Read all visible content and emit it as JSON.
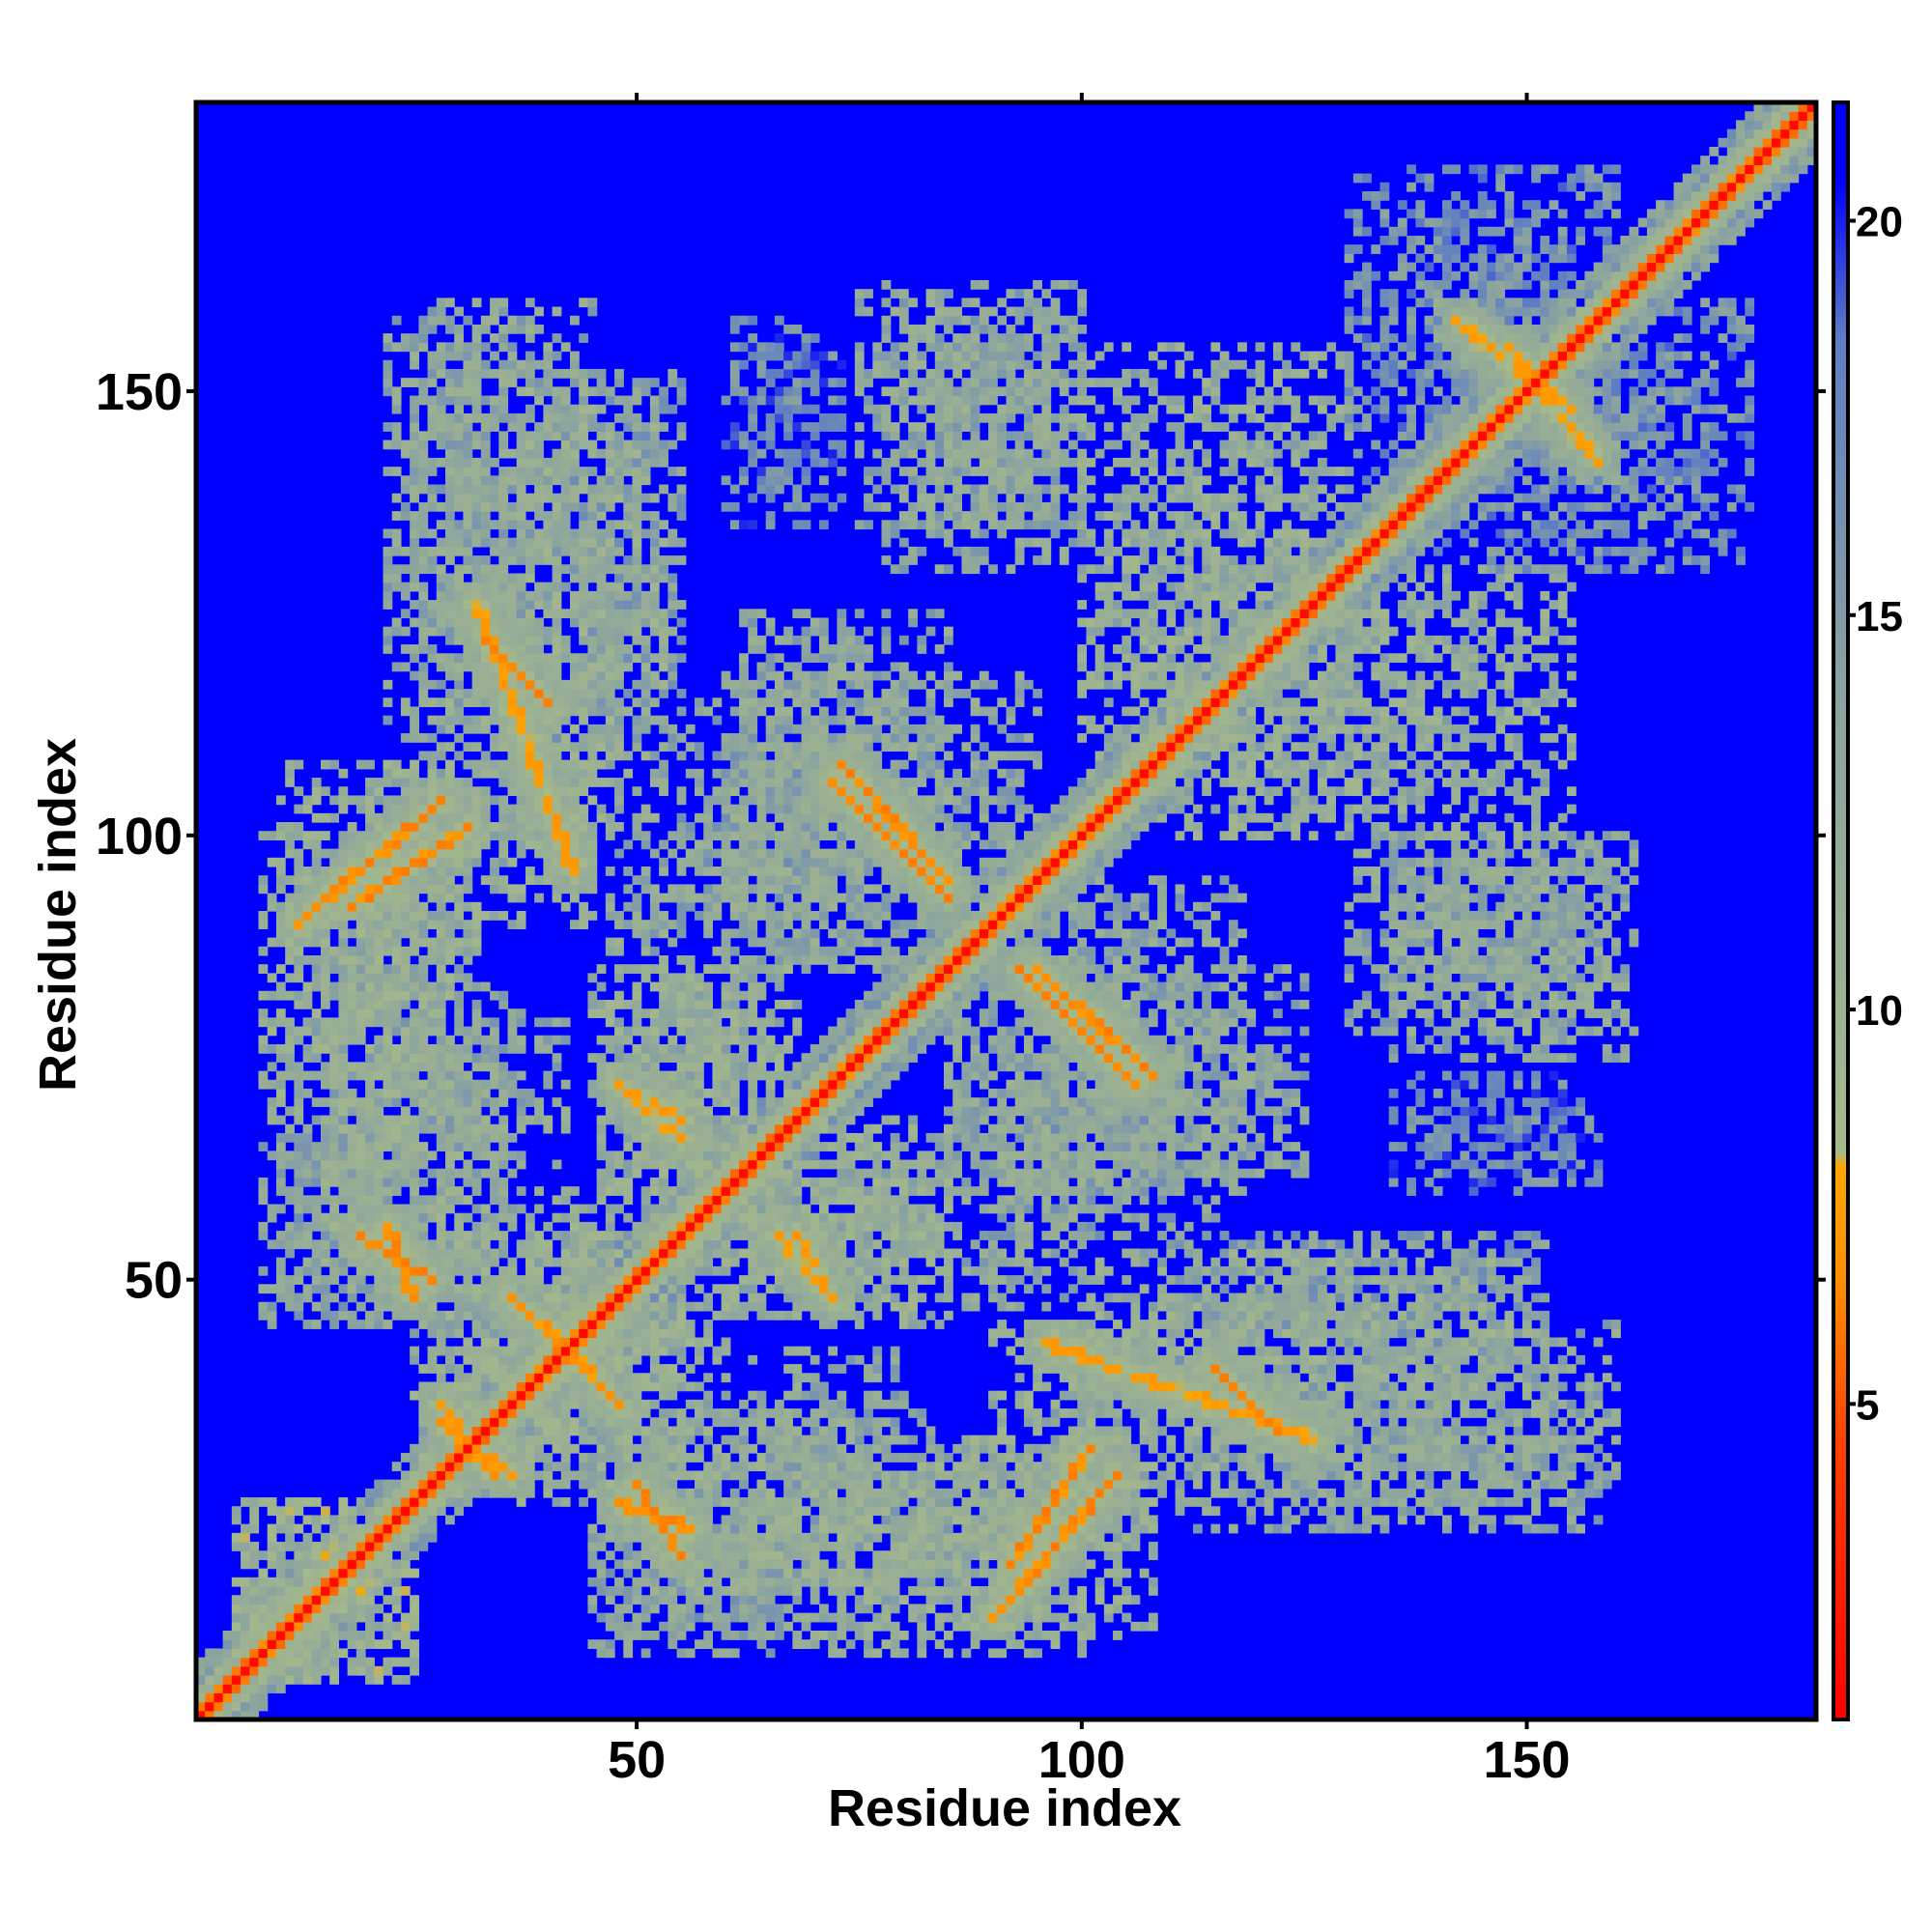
{
  "chart_data": {
    "type": "heatmap",
    "title": "",
    "xlabel": "Residue index",
    "ylabel": "Residue index",
    "xlim": [
      1,
      182
    ],
    "ylim": [
      1,
      182
    ],
    "x_ticks": [
      50,
      100,
      150
    ],
    "y_ticks": [
      50,
      100,
      150
    ],
    "colorbar": {
      "range": [
        1,
        21.5
      ],
      "ticks": [
        5,
        10,
        15,
        20
      ],
      "stops": [
        {
          "value": 1,
          "color": "#ff0000"
        },
        {
          "value": 4.5,
          "color": "#ff4000"
        },
        {
          "value": 6.5,
          "color": "#ff8c00"
        },
        {
          "value": 8,
          "color": "#ffa500"
        },
        {
          "value": 8.2,
          "color": "#a6b98a"
        },
        {
          "value": 14,
          "color": "#8aa3a0"
        },
        {
          "value": 18.5,
          "color": "#5e7ec3"
        },
        {
          "value": 20.5,
          "color": "#0000ff"
        },
        {
          "value": 21.5,
          "color": "#0000ff"
        }
      ]
    },
    "background_value": 21.5,
    "diagonal": {
      "main_value": 1.5,
      "band_value": 5.5,
      "band_halfwidth": 1
    },
    "contact_features": [
      {
        "from": [
          12,
          90
        ],
        "to": [
          28,
          104
        ],
        "value": 6
      },
      {
        "from": [
          43,
          96
        ],
        "to": [
          32,
          126
        ],
        "value": 7
      },
      {
        "from": [
          22,
          56
        ],
        "to": [
          25,
          48
        ],
        "value": 6
      },
      {
        "from": [
          50,
          27
        ],
        "to": [
          55,
          19
        ],
        "value": 6
      },
      {
        "from": [
          92,
          18
        ],
        "to": [
          101,
          31
        ],
        "value": 6
      },
      {
        "from": [
          115,
          40
        ],
        "to": [
          122,
          33
        ],
        "value": 6
      },
      {
        "from": [
          73,
          108
        ],
        "to": [
          85,
          95
        ],
        "value": 6
      },
      {
        "from": [
          93,
          85
        ],
        "to": [
          106,
          72
        ],
        "value": 6
      },
      {
        "from": [
          36,
          48
        ],
        "to": [
          45,
          40
        ],
        "value": 6.5
      },
      {
        "from": [
          28,
          36
        ],
        "to": [
          34,
          28
        ],
        "value": 6.5
      },
      {
        "from": [
          48,
          72
        ],
        "to": [
          55,
          68
        ],
        "value": 7
      },
      {
        "from": [
          66,
          55
        ],
        "to": [
          70,
          50
        ],
        "value": 7
      },
      {
        "from": [
          142,
          158
        ],
        "to": [
          155,
          148
        ],
        "value": 7
      }
    ],
    "contact_regions": [
      {
        "x": [
          10,
          32
        ],
        "y": [
          85,
          108
        ],
        "value": 12
      },
      {
        "x": [
          25,
          45
        ],
        "y": [
          115,
          160
        ],
        "value": 13
      },
      {
        "x": [
          41,
          55
        ],
        "y": [
          110,
          152
        ],
        "value": 14
      },
      {
        "x": [
          55,
          72
        ],
        "y": [
          92,
          115
        ],
        "value": 14
      },
      {
        "x": [
          60,
          95
        ],
        "y": [
          85,
          118
        ],
        "value": 13
      },
      {
        "x": [
          75,
          100
        ],
        "y": [
          135,
          162
        ],
        "value": 13
      },
      {
        "x": [
          100,
          130
        ],
        "y": [
          105,
          155
        ],
        "value": 12
      },
      {
        "x": [
          130,
          160
        ],
        "y": [
          140,
          175
        ],
        "value": 16
      },
      {
        "x": [
          130,
          160
        ],
        "y": [
          78,
          100
        ],
        "value": 13
      },
      {
        "x": [
          135,
          158
        ],
        "y": [
          60,
          73
        ],
        "value": 17
      },
      {
        "x": [
          95,
          125
        ],
        "y": [
          62,
          85
        ],
        "value": 13
      },
      {
        "x": [
          85,
          100
        ],
        "y": [
          47,
          75
        ],
        "value": 13
      },
      {
        "x": [
          100,
          150
        ],
        "y": [
          38,
          53
        ],
        "value": 12
      },
      {
        "x": [
          110,
          158
        ],
        "y": [
          22,
          40
        ],
        "value": 13
      },
      {
        "x": [
          50,
          90
        ],
        "y": [
          15,
          30
        ],
        "value": 12
      },
      {
        "x": [
          70,
          100
        ],
        "y": [
          8,
          28
        ],
        "value": 12
      },
      {
        "x": [
          45,
          65
        ],
        "y": [
          10,
          22
        ],
        "value": 14
      },
      {
        "x": [
          8,
          35
        ],
        "y": [
          45,
          85
        ],
        "value": 13
      },
      {
        "x": [
          30,
          60
        ],
        "y": [
          25,
          55
        ],
        "value": 12
      },
      {
        "x": [
          46,
          68
        ],
        "y": [
          55,
          85
        ],
        "value": 12
      },
      {
        "x": [
          62,
          80
        ],
        "y": [
          28,
          42
        ],
        "value": 13
      },
      {
        "x": [
          5,
          25
        ],
        "y": [
          5,
          25
        ],
        "value": 11
      },
      {
        "x": [
          90,
          115
        ],
        "y": [
          25,
          45
        ],
        "value": 12
      },
      {
        "x": [
          60,
          85
        ],
        "y": [
          45,
          65
        ],
        "value": 12
      }
    ]
  }
}
